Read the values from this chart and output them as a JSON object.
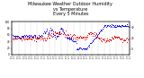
{
  "title": "Milwaukee Weather Outdoor Humidity\nvs Temperature\nEvery 5 Minutes",
  "title_fontsize": 3.5,
  "bg_color": "#ffffff",
  "plot_bg": "#ffffff",
  "grid_color": "#bbbbbb",
  "blue_color": "#0000ee",
  "red_color": "#dd0000",
  "ylim_left": [
    0,
    100
  ],
  "ylim_right": [
    -10,
    50
  ],
  "n_points": 200,
  "marker_size": 0.5
}
